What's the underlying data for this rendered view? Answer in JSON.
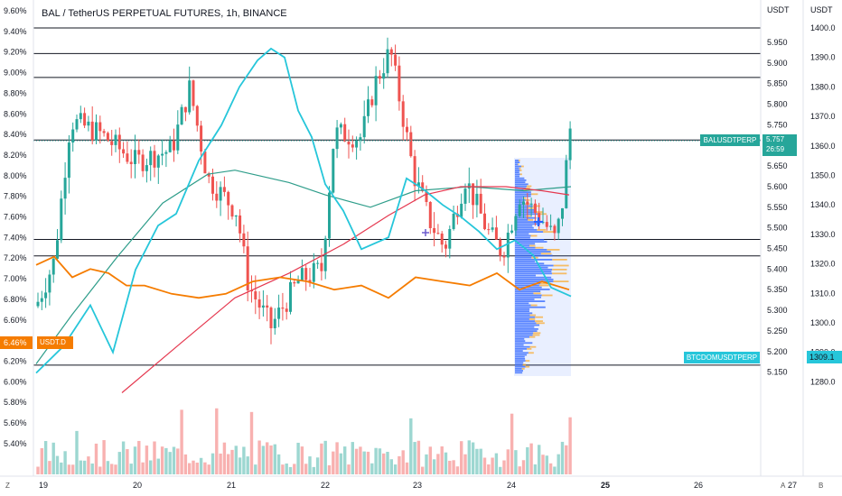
{
  "title": "BAL / TetherUS PERPETUAL FUTURES, 1h, BINANCE",
  "axis_headers": {
    "mid": "USDT",
    "right": "USDT"
  },
  "left_axis": {
    "ticks": [
      "9.60%",
      "9.40%",
      "9.20%",
      "9.00%",
      "8.80%",
      "8.60%",
      "8.40%",
      "8.20%",
      "8.00%",
      "7.80%",
      "7.60%",
      "7.40%",
      "7.20%",
      "7.00%",
      "6.80%",
      "6.60%",
      "6.40%",
      "6.20%",
      "6.00%",
      "5.80%",
      "5.60%",
      "5.40%"
    ]
  },
  "mid_axis": {
    "ticks": [
      "5.950",
      "5.900",
      "5.850",
      "5.800",
      "5.750",
      "5.700",
      "5.650",
      "5.600",
      "5.550",
      "5.500",
      "5.450",
      "5.400",
      "5.350",
      "5.300",
      "5.250",
      "5.200",
      "5.150"
    ]
  },
  "right_axis": {
    "ticks": [
      "1400.0",
      "1390.0",
      "1380.0",
      "1370.0",
      "1360.0",
      "1350.0",
      "1340.0",
      "1330.0",
      "1320.0",
      "1310.0",
      "1300.0",
      "1290.0",
      "1280.0"
    ]
  },
  "time_axis": {
    "ticks": [
      "19",
      "20",
      "21",
      "22",
      "23",
      "24",
      "25",
      "26",
      "27"
    ],
    "bold_index": 6
  },
  "labels": {
    "bal_symbol": "BALUSDTPERP",
    "bal_price": "5.757",
    "bal_countdown": "26:59",
    "btc_symbol": "BTCDOMUSDTPERP",
    "btc_price": "1309.1",
    "usdt_pct": "6.46%",
    "usdt_name": "USDT.D"
  },
  "corner_buttons": {
    "z": "Z",
    "a": "A",
    "b": "B"
  },
  "colors": {
    "up": "#26a69a",
    "down": "#ef5350",
    "cyan": "#26c6da",
    "orange": "#f57c00",
    "ma_red": "#e53950",
    "ma_green": "#2e9d8a",
    "profile_blue": "#2962ff",
    "profile_yellow": "#f9a825"
  },
  "horizontal_levels": [
    5.985,
    5.923,
    5.865,
    5.713,
    5.472,
    5.432,
    5.167
  ]
}
